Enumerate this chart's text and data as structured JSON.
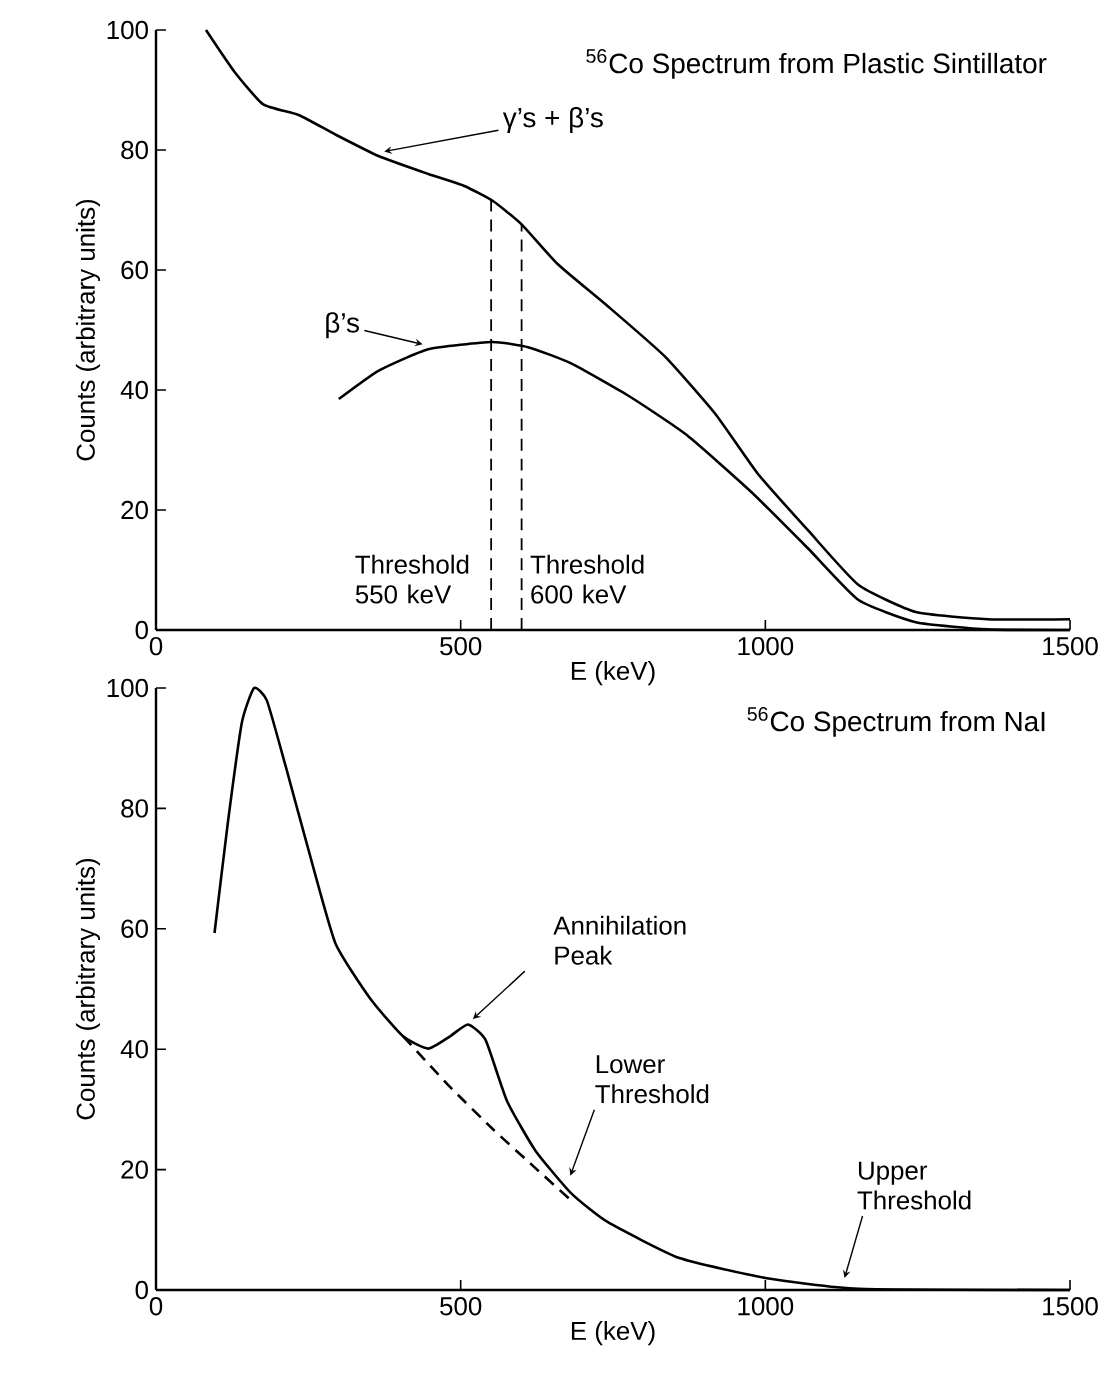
{
  "chart_data": [
    {
      "type": "line",
      "title": "$^{56}$Co Spectrum from Plastic Sintillator",
      "xlabel": "E (keV)",
      "ylabel": "Counts (arbitrary units)",
      "xlim": [
        0,
        1500
      ],
      "ylim": [
        0,
        100
      ],
      "xticks": [
        0,
        500,
        1000,
        1500
      ],
      "yticks": [
        0,
        20,
        40,
        60,
        80,
        100
      ],
      "series": [
        {
          "name": "γ’s + β’s",
          "color": "#000000",
          "x": [
            82,
            129,
            176,
            235,
            294,
            365,
            447,
            506,
            553,
            600,
            659,
            741,
            835,
            918,
            988,
            1071,
            1153,
            1247,
            1365,
            1500
          ],
          "values": [
            100,
            93,
            87.6,
            85.8,
            82.6,
            79,
            76,
            74,
            71.5,
            67.6,
            61,
            54,
            45.6,
            36,
            26,
            16.5,
            7.5,
            3,
            1.8,
            1.8
          ]
        },
        {
          "name": "β’s",
          "color": "#000000",
          "x": [
            300,
            365,
            447,
            551,
            612,
            682,
            776,
            871,
            977,
            1071,
            1153,
            1247,
            1365,
            1500
          ],
          "values": [
            38.5,
            43.2,
            46.8,
            48,
            47.1,
            44.4,
            39,
            32.5,
            23,
            13.5,
            5,
            1.3,
            0.1,
            0
          ]
        }
      ],
      "ref_lines": [
        {
          "axis": "x",
          "value": 550,
          "label": "Threshold 550 keV",
          "line_style": "dashed"
        },
        {
          "axis": "x",
          "value": 600,
          "label": "Threshold 600 keV",
          "line_style": "dashed"
        }
      ]
    },
    {
      "type": "line",
      "title": "$^{56}$Co Spectrum from NaI",
      "xlabel": "E (keV)",
      "ylabel": "Counts (arbitrary units)",
      "xlim": [
        0,
        1500
      ],
      "ylim": [
        0,
        100
      ],
      "xticks": [
        0,
        500,
        1000,
        1500
      ],
      "yticks": [
        0,
        20,
        40,
        60,
        80,
        100
      ],
      "series": [
        {
          "color": "#000000",
          "x": [
            96,
            118,
            141,
            161,
            182,
            212,
            247,
            294,
            353,
            406,
            447,
            482,
            512,
            541,
            576,
            623,
            682,
            741,
            859,
            1000,
            1153,
            1500
          ],
          "values": [
            59.3,
            77.7,
            94.3,
            100,
            97.9,
            87.3,
            74.3,
            57.7,
            48.2,
            42.1,
            40.1,
            42.1,
            44.1,
            41.5,
            31.4,
            23.1,
            16,
            11.3,
            5.3,
            2,
            0.2,
            0
          ]
        },
        {
          "color": "#000000",
          "line_style": "dashed",
          "x": [
            406,
            480,
            553,
            620,
            682
          ],
          "values": [
            42.1,
            34,
            26.7,
            20.5,
            14.8
          ]
        }
      ],
      "annotations": [
        {
          "text": "Annihilation Peak",
          "x": 520,
          "y": 44
        },
        {
          "text": "Lower Threshold",
          "x": 680,
          "y": 18
        },
        {
          "text": "Upper Threshold",
          "x": 1130,
          "y": 1
        }
      ]
    }
  ]
}
